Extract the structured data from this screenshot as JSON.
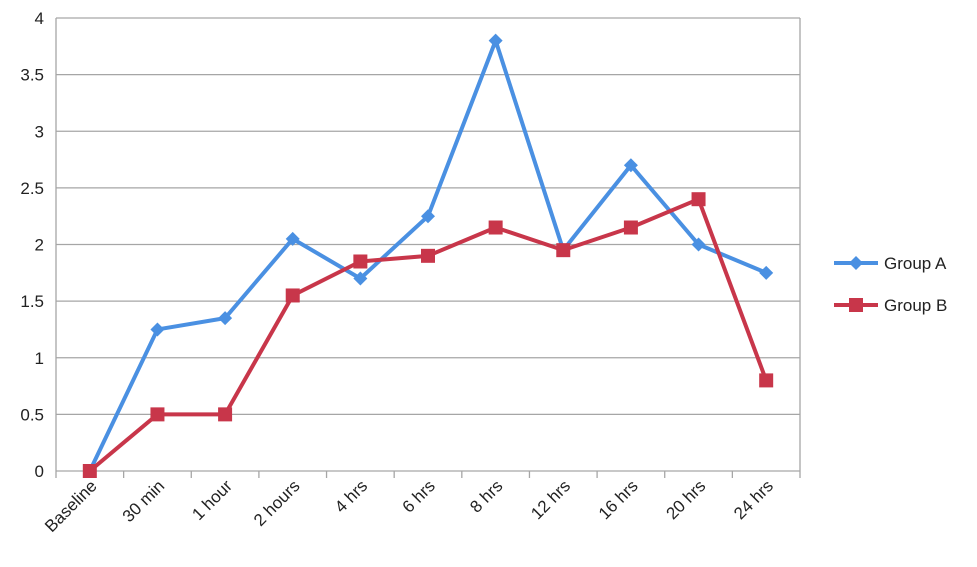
{
  "chart_data": {
    "type": "line",
    "title": "",
    "xlabel": "",
    "ylabel": "",
    "categories": [
      "Baseline",
      "30 min",
      "1 hour",
      "2 hours",
      "4 hrs",
      "6 hrs",
      "8 hrs",
      "12 hrs",
      "16 hrs",
      "20 hrs",
      "24 hrs"
    ],
    "ylim": [
      0,
      4
    ],
    "yticks": [
      "0",
      "0.5",
      "1",
      "1.5",
      "2",
      "2.5",
      "3",
      "3.5",
      "4"
    ],
    "grid": true,
    "legend_position": "right",
    "series": [
      {
        "name": "Group A",
        "color": "#4a90e2",
        "marker": "diamond",
        "values": [
          0,
          1.25,
          1.35,
          2.05,
          1.7,
          2.25,
          3.8,
          1.95,
          2.7,
          2.0,
          1.75
        ]
      },
      {
        "name": "Group B",
        "color": "#c8364a",
        "marker": "square",
        "values": [
          0,
          0.5,
          0.5,
          1.55,
          1.85,
          1.9,
          2.15,
          1.95,
          2.15,
          2.4,
          0.8
        ]
      }
    ]
  }
}
